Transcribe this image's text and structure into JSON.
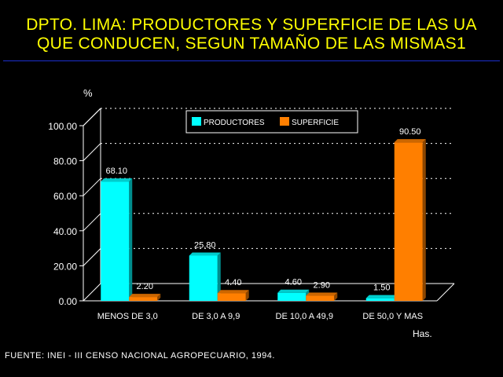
{
  "title": {
    "line1": "DPTO. LIMA: PRODUCTORES Y SUPERFICIE DE LAS UA",
    "line2": "QUE CONDUCEN, SEGUN TAMAÑO DE LAS MISMAS1"
  },
  "source": "FUENTE: INEI - III CENSO NACIONAL AGROPECUARIO, 1994.",
  "colors": {
    "title": "#ffff00",
    "rule": "#1c2fd0",
    "productores": "#00ffff",
    "superficie": "#ff7f00"
  },
  "chart_data": {
    "type": "bar",
    "title": "DPTO. LIMA: PRODUCTORES Y SUPERFICIE DE LAS UA QUE CONDUCEN, SEGUN TAMAÑO DE LAS MISMAS1",
    "ylabel": "%",
    "xlabel": "Has.",
    "ylim": [
      0,
      100
    ],
    "yticks": [
      "0.00",
      "20.00",
      "40.00",
      "60.00",
      "80.00",
      "100.00"
    ],
    "grid": true,
    "legend_position": "top-center",
    "categories": [
      "MENOS DE 3,0",
      "DE 3,0  A 9,9",
      "DE 10,0  A 49,9",
      "DE 50,0  Y MAS"
    ],
    "series": [
      {
        "name": "PRODUCTORES",
        "color": "#00ffff",
        "values": [
          68.1,
          25.8,
          4.6,
          1.5
        ],
        "labels": [
          "68.10",
          "25.80",
          "4.60",
          "1.50"
        ]
      },
      {
        "name": "SUPERFICIE",
        "color": "#ff7f00",
        "values": [
          2.2,
          4.4,
          2.9,
          90.5
        ],
        "labels": [
          "2.20",
          "4.40",
          "2.90",
          "90.50"
        ]
      }
    ]
  }
}
